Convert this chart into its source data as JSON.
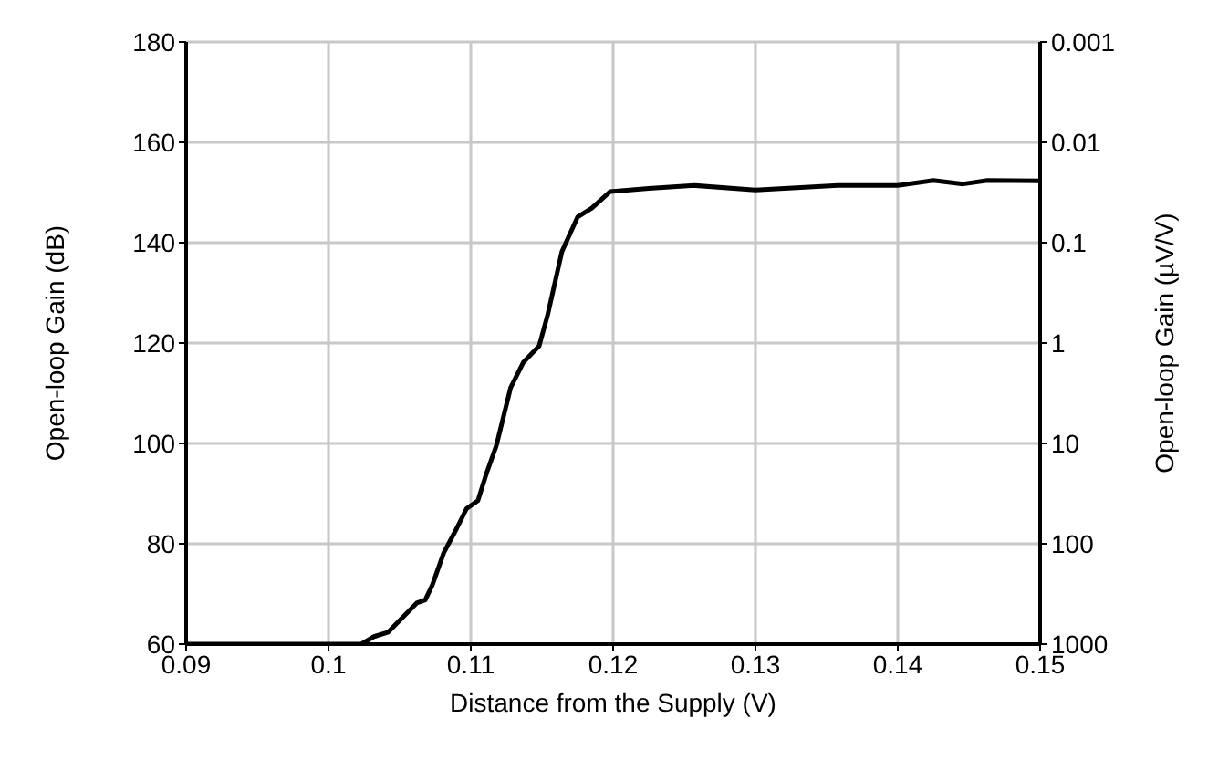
{
  "chart_data": {
    "type": "line",
    "xlabel": "Distance from the Supply (V)",
    "ylabel": "Open-loop Gain (dB)",
    "y2label": "Open-loop Gain (µV/V)",
    "xlim": [
      0.09,
      0.15
    ],
    "xticks": [
      0.09,
      0.1,
      0.11,
      0.12,
      0.13,
      0.14,
      0.15
    ],
    "ylim": [
      60,
      180
    ],
    "yticks": [
      60,
      80,
      100,
      120,
      140,
      160,
      180
    ],
    "y2lim": [
      1000,
      0.001
    ],
    "y2ticks": [
      1000,
      100,
      10,
      1,
      0.1,
      0.01,
      0.001
    ],
    "log": "y2",
    "grid": true,
    "marker": "none",
    "line_style": "solid",
    "series": [
      {
        "color": "#000000",
        "x": [
          0.09,
          0.1,
          0.1023,
          0.1032,
          0.1042,
          0.1062,
          0.1068,
          0.1073,
          0.1081,
          0.109,
          0.1097,
          0.1105,
          0.1111,
          0.1118,
          0.1128,
          0.1137,
          0.1148,
          0.1154,
          0.1164,
          0.1175,
          0.1185,
          0.1198,
          0.1225,
          0.1257,
          0.13,
          0.1358,
          0.14,
          0.1425,
          0.1446,
          0.1463,
          0.15
        ],
        "values": [
          60,
          60,
          60,
          61.5,
          62.4,
          68.2,
          68.8,
          71.8,
          78.2,
          83,
          87,
          88.6,
          94,
          99.6,
          111.1,
          116.2,
          119.4,
          125.6,
          138.2,
          145.1,
          146.9,
          150.2,
          150.8,
          151.4,
          150.5,
          151.4,
          151.4,
          152.4,
          151.7,
          152.4,
          152.3
        ]
      }
    ]
  }
}
